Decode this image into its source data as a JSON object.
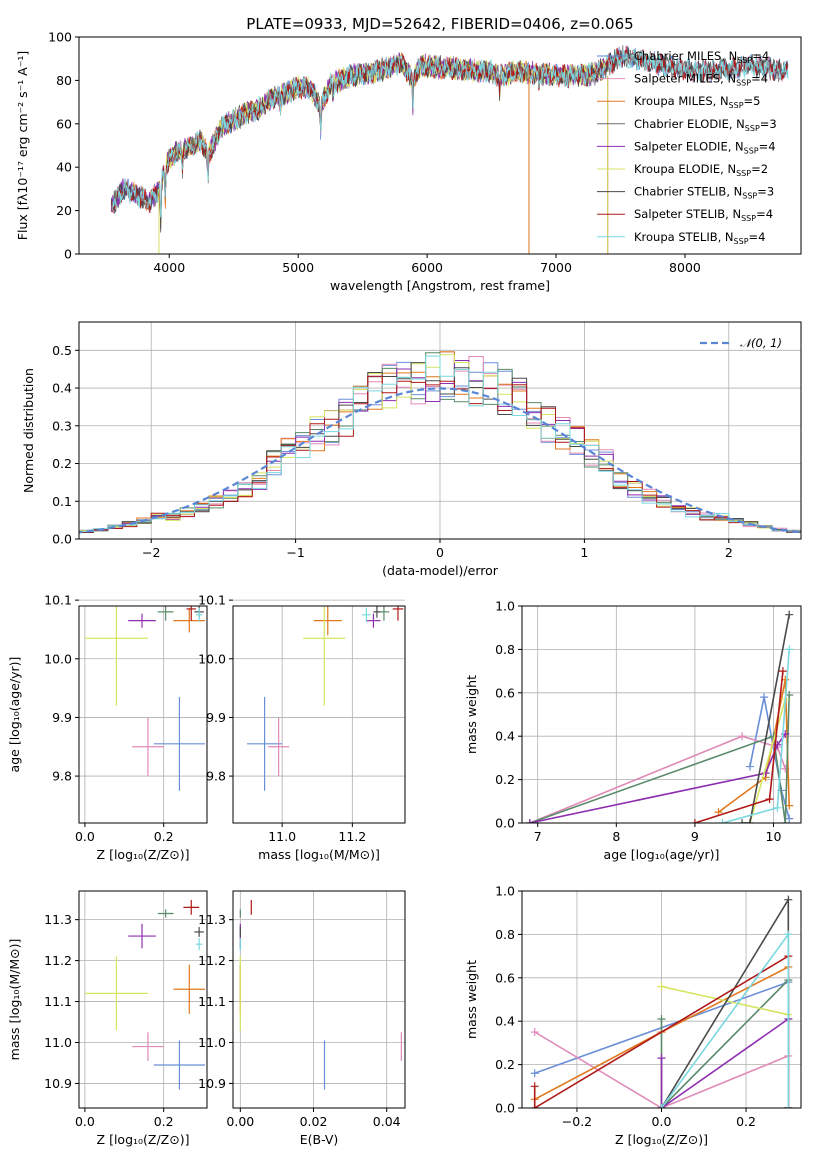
{
  "series_colors": [
    "#5a86d6",
    "#e68fc0",
    "#e0781c",
    "#6a6a6a",
    "#8e2fb0",
    "#d8e060",
    "#4a4a4a",
    "#b01818",
    "#7ad8e0"
  ],
  "series_colors_panels": [
    "#6a8fd8",
    "#e08ab8",
    "#e0781c",
    "#5a8a6a",
    "#8e2fb0",
    "#d6e460",
    "#4a4a4a",
    "#b01818",
    "#7ad8e0"
  ],
  "chart_data": [
    {
      "id": "spectrum",
      "type": "line",
      "title": "PLATE=0933, MJD=52642, FIBERID=0406, z=0.065",
      "xlabel": "wavelength [Angstrom, rest frame]",
      "ylabel": "Flux [fλ10⁻¹⁷ erg cm⁻² s⁻¹ A⁻¹]",
      "xlim": [
        3300,
        8900
      ],
      "ylim": [
        0,
        100
      ],
      "xticks": [
        4000,
        5000,
        6000,
        7000,
        8000
      ],
      "yticks": [
        0,
        20,
        40,
        60,
        80,
        100
      ],
      "grid": false,
      "legend_position": "top-right",
      "legend": [
        "Chabrier MILES, N_SSP=4",
        "Salpeter MILES, N_SSP=4",
        "Kroupa MILES, N_SSP=5",
        "Chabrier ELODIE, N_SSP=3",
        "Salpeter ELODIE, N_SSP=4",
        "Kroupa ELODIE, N_SSP=2",
        "Chabrier STELIB, N_SSP=3",
        "Salpeter STELIB, N_SSP=4",
        "Kroupa STELIB, N_SSP=4"
      ],
      "continuum": [
        [
          3550,
          22
        ],
        [
          3650,
          30
        ],
        [
          3750,
          27
        ],
        [
          3850,
          24
        ],
        [
          3920,
          30
        ],
        [
          3980,
          42
        ],
        [
          4050,
          47
        ],
        [
          4150,
          49
        ],
        [
          4250,
          52
        ],
        [
          4300,
          45
        ],
        [
          4400,
          58
        ],
        [
          4500,
          62
        ],
        [
          4600,
          65
        ],
        [
          4700,
          67
        ],
        [
          4800,
          72
        ],
        [
          4900,
          74
        ],
        [
          5000,
          77
        ],
        [
          5100,
          76
        ],
        [
          5175,
          68
        ],
        [
          5250,
          78
        ],
        [
          5400,
          82
        ],
        [
          5500,
          83
        ],
        [
          5600,
          84
        ],
        [
          5700,
          86
        ],
        [
          5800,
          88
        ],
        [
          5890,
          80
        ],
        [
          5950,
          87
        ],
        [
          6100,
          86
        ],
        [
          6300,
          85
        ],
        [
          6500,
          84
        ],
        [
          6562,
          82
        ],
        [
          6700,
          84
        ],
        [
          6900,
          83
        ],
        [
          7100,
          82
        ],
        [
          7300,
          83
        ],
        [
          7500,
          91
        ],
        [
          7700,
          89
        ],
        [
          7900,
          86
        ],
        [
          8100,
          84
        ],
        [
          8300,
          85
        ],
        [
          8500,
          87
        ],
        [
          8600,
          86
        ],
        [
          8700,
          85
        ],
        [
          8800,
          84
        ]
      ],
      "absorption_lines": [
        [
          3934,
          18
        ],
        [
          3969,
          14
        ],
        [
          4102,
          8
        ],
        [
          4300,
          9
        ],
        [
          4861,
          7
        ],
        [
          5175,
          11
        ],
        [
          5270,
          6
        ],
        [
          5890,
          12
        ],
        [
          6563,
          8
        ],
        [
          6867,
          6
        ]
      ]
    },
    {
      "id": "residuals",
      "type": "histogram",
      "xlabel": "(data-model)/error",
      "ylabel": "Normed distribution",
      "xlim": [
        -2.5,
        2.5
      ],
      "ylim": [
        0,
        0.575
      ],
      "xticks": [
        -2,
        -1,
        0,
        1,
        2
      ],
      "yticks": [
        0.0,
        0.1,
        0.2,
        0.3,
        0.4,
        0.5
      ],
      "grid": true,
      "legend_position": "top-right",
      "legend": [
        "𝒩(0, 1)"
      ],
      "bin_width": 0.1,
      "reference_curve": "normal(0,1)"
    },
    {
      "id": "age_vs_Z",
      "type": "scatter-errorbar",
      "xlabel": "Z [log₁₀(Z/Z⊙)]",
      "ylabel": "age  [log₁₀(age/yr)]",
      "xlim": [
        -0.015,
        0.31
      ],
      "ylim": [
        9.72,
        10.09
      ],
      "xticks": [
        0.0,
        0.2
      ],
      "yticks": [
        9.8,
        9.9,
        10.0,
        10.1
      ],
      "grid": true,
      "points": [
        {
          "x": 0.24,
          "y": 9.855,
          "xerr": 0.065,
          "yerr": 0.08
        },
        {
          "x": 0.16,
          "y": 9.85,
          "xerr": 0.04,
          "yerr": 0.05
        },
        {
          "x": 0.265,
          "y": 10.065,
          "xerr": 0.04,
          "yerr": 0.02
        },
        {
          "x": 0.205,
          "y": 10.08,
          "xerr": 0.02,
          "yerr": 0.015
        },
        {
          "x": 0.145,
          "y": 10.065,
          "xerr": 0.035,
          "yerr": 0.012
        },
        {
          "x": 0.08,
          "y": 10.035,
          "xerr": 0.08,
          "yerr": 0.115
        },
        {
          "x": 0.29,
          "y": 10.08,
          "xerr": 0.012,
          "yerr": 0.01
        },
        {
          "x": 0.27,
          "y": 10.085,
          "xerr": 0.012,
          "yerr": 0.02
        },
        {
          "x": 0.29,
          "y": 10.075,
          "xerr": 0.008,
          "yerr": 0.012
        }
      ]
    },
    {
      "id": "age_vs_mass",
      "type": "scatter-errorbar",
      "xlabel": "mass [log₁₀(M/M⊙)]",
      "ylabel": "",
      "xlim": [
        10.86,
        11.35
      ],
      "ylim": [
        9.72,
        10.09
      ],
      "xticks": [
        11.0,
        11.2
      ],
      "yticks": [
        9.8,
        9.9,
        10.0,
        10.1
      ],
      "grid": true,
      "points": [
        {
          "x": 10.95,
          "y": 9.855,
          "xerr": 0.05,
          "yerr": 0.08
        },
        {
          "x": 10.99,
          "y": 9.85,
          "xerr": 0.03,
          "yerr": 0.05
        },
        {
          "x": 11.13,
          "y": 10.065,
          "xerr": 0.04,
          "yerr": 0.025
        },
        {
          "x": 11.29,
          "y": 10.08,
          "xerr": 0.015,
          "yerr": 0.015
        },
        {
          "x": 11.26,
          "y": 10.065,
          "xerr": 0.02,
          "yerr": 0.012
        },
        {
          "x": 11.12,
          "y": 10.035,
          "xerr": 0.06,
          "yerr": 0.115
        },
        {
          "x": 11.27,
          "y": 10.08,
          "xerr": 0.01,
          "yerr": 0.01
        },
        {
          "x": 11.33,
          "y": 10.085,
          "xerr": 0.015,
          "yerr": 0.02
        },
        {
          "x": 11.24,
          "y": 10.075,
          "xerr": 0.012,
          "yerr": 0.012
        }
      ]
    },
    {
      "id": "weight_vs_age",
      "type": "line",
      "xlabel": "age  [log₁₀(age/yr)]",
      "ylabel": "mass weight",
      "xlim": [
        6.8,
        10.35
      ],
      "ylim": [
        0,
        1.0
      ],
      "xticks": [
        7,
        8,
        9,
        10
      ],
      "yticks": [
        0.0,
        0.2,
        0.4,
        0.6,
        0.8,
        1.0
      ],
      "grid": true,
      "series": [
        {
          "x": [
            9.7,
            9.88,
            10.1,
            10.2
          ],
          "y": [
            0.26,
            0.58,
            0.15,
            0.02
          ]
        },
        {
          "x": [
            6.9,
            9.6,
            10.05,
            10.15
          ],
          "y": [
            0.0,
            0.4,
            0.35,
            0.25
          ]
        },
        {
          "x": [
            9.3,
            9.9,
            10.15,
            10.2
          ],
          "y": [
            0.05,
            0.21,
            0.66,
            0.08
          ]
        },
        {
          "x": [
            6.9,
            10.0,
            10.15,
            10.2
          ],
          "y": [
            0.0,
            0.4,
            0.0,
            0.59
          ]
        },
        {
          "x": [
            6.9,
            9.9,
            10.05,
            10.15
          ],
          "y": [
            0.0,
            0.23,
            0.36,
            0.41
          ]
        },
        {
          "x": [
            9.7,
            10.15
          ],
          "y": [
            0.0,
            0.57
          ]
        },
        {
          "x": [
            9.6,
            9.7,
            10.2
          ],
          "y": [
            0.0,
            0.0,
            0.96
          ]
        },
        {
          "x": [
            9.0,
            9.95,
            10.12
          ],
          "y": [
            0.0,
            0.11,
            0.7
          ]
        },
        {
          "x": [
            9.35,
            10.05,
            10.2
          ],
          "y": [
            0.0,
            0.07,
            0.8
          ]
        }
      ]
    },
    {
      "id": "mass_vs_Z",
      "type": "scatter-errorbar",
      "xlabel": "Z [log₁₀(Z/Z⊙)]",
      "ylabel": "mass [log₁₀(M/M⊙)]",
      "xlim": [
        -0.015,
        0.31
      ],
      "ylim": [
        10.84,
        11.37
      ],
      "xticks": [
        0.0,
        0.2
      ],
      "yticks": [
        10.9,
        11.0,
        11.1,
        11.2,
        11.3
      ],
      "grid": true,
      "points": [
        {
          "x": 0.24,
          "y": 10.945,
          "xerr": 0.065,
          "yerr": 0.06
        },
        {
          "x": 0.16,
          "y": 10.99,
          "xerr": 0.04,
          "yerr": 0.035
        },
        {
          "x": 0.265,
          "y": 11.13,
          "xerr": 0.04,
          "yerr": 0.06
        },
        {
          "x": 0.205,
          "y": 11.315,
          "xerr": 0.02,
          "yerr": 0.01
        },
        {
          "x": 0.145,
          "y": 11.26,
          "xerr": 0.035,
          "yerr": 0.03
        },
        {
          "x": 0.08,
          "y": 11.12,
          "xerr": 0.08,
          "yerr": 0.09
        },
        {
          "x": 0.29,
          "y": 11.27,
          "xerr": 0.012,
          "yerr": 0.012
        },
        {
          "x": 0.27,
          "y": 11.33,
          "xerr": 0.02,
          "yerr": 0.018
        },
        {
          "x": 0.29,
          "y": 11.24,
          "xerr": 0.008,
          "yerr": 0.015
        }
      ]
    },
    {
      "id": "mass_vs_ebv",
      "type": "scatter-errorbar",
      "xlabel": "E(B-V)",
      "ylabel": "",
      "xlim": [
        -0.002,
        0.045
      ],
      "ylim": [
        10.84,
        11.37
      ],
      "xticks": [
        0.0,
        0.02,
        0.04
      ],
      "yticks": [
        10.9,
        11.0,
        11.1,
        11.2,
        11.3
      ],
      "grid": true,
      "points": [
        {
          "x": 0.023,
          "y": 10.945,
          "xerr": 0.0,
          "yerr": 0.06
        },
        {
          "x": 0.044,
          "y": 10.99,
          "xerr": 0.0,
          "yerr": 0.035
        },
        {
          "x": 0.0,
          "y": 11.13,
          "xerr": 0.0,
          "yerr": 0.06
        },
        {
          "x": 0.0,
          "y": 11.315,
          "xerr": 0.0,
          "yerr": 0.01
        },
        {
          "x": 0.0,
          "y": 11.26,
          "xerr": 0.0,
          "yerr": 0.03
        },
        {
          "x": 0.0,
          "y": 11.12,
          "xerr": 0.0,
          "yerr": 0.09
        },
        {
          "x": 0.0,
          "y": 11.27,
          "xerr": 0.0,
          "yerr": 0.012
        },
        {
          "x": 0.003,
          "y": 11.33,
          "xerr": 0.0,
          "yerr": 0.018
        },
        {
          "x": 0.0,
          "y": 11.24,
          "xerr": 0.0,
          "yerr": 0.015
        }
      ]
    },
    {
      "id": "weight_vs_Z",
      "type": "line",
      "xlabel": "Z [log₁₀(Z/Z⊙)]",
      "ylabel": "mass weight",
      "xlim": [
        -0.33,
        0.33
      ],
      "ylim": [
        0,
        1.0
      ],
      "xticks": [
        -0.2,
        0.0,
        0.2
      ],
      "yticks": [
        0.0,
        0.2,
        0.4,
        0.6,
        0.8,
        1.0
      ],
      "grid": true,
      "series": [
        {
          "x": [
            -0.3,
            0.3
          ],
          "y": [
            0.16,
            0.58
          ]
        },
        {
          "x": [
            -0.3,
            0.0,
            0.3
          ],
          "y": [
            0.35,
            0.0,
            0.24
          ]
        },
        {
          "x": [
            -0.3,
            0.0,
            0.3
          ],
          "y": [
            0.04,
            0.35,
            0.65
          ]
        },
        {
          "x": [
            0.0,
            0.0,
            0.3,
            0.3
          ],
          "y": [
            0.41,
            0.0,
            0.59,
            0.0
          ]
        },
        {
          "x": [
            0.0,
            0.0,
            0.3,
            0.3
          ],
          "y": [
            0.23,
            0.0,
            0.41,
            0.0
          ]
        },
        {
          "x": [
            0.0,
            0.3
          ],
          "y": [
            0.56,
            0.43
          ]
        },
        {
          "x": [
            0.0,
            0.3,
            0.3
          ],
          "y": [
            0.0,
            0.96,
            0.0
          ]
        },
        {
          "x": [
            -0.3,
            -0.3,
            0.3,
            0.3
          ],
          "y": [
            0.1,
            0.0,
            0.7,
            0.0
          ]
        },
        {
          "x": [
            0.0,
            0.3,
            0.3
          ],
          "y": [
            0.0,
            0.8,
            0.0
          ]
        }
      ]
    }
  ]
}
